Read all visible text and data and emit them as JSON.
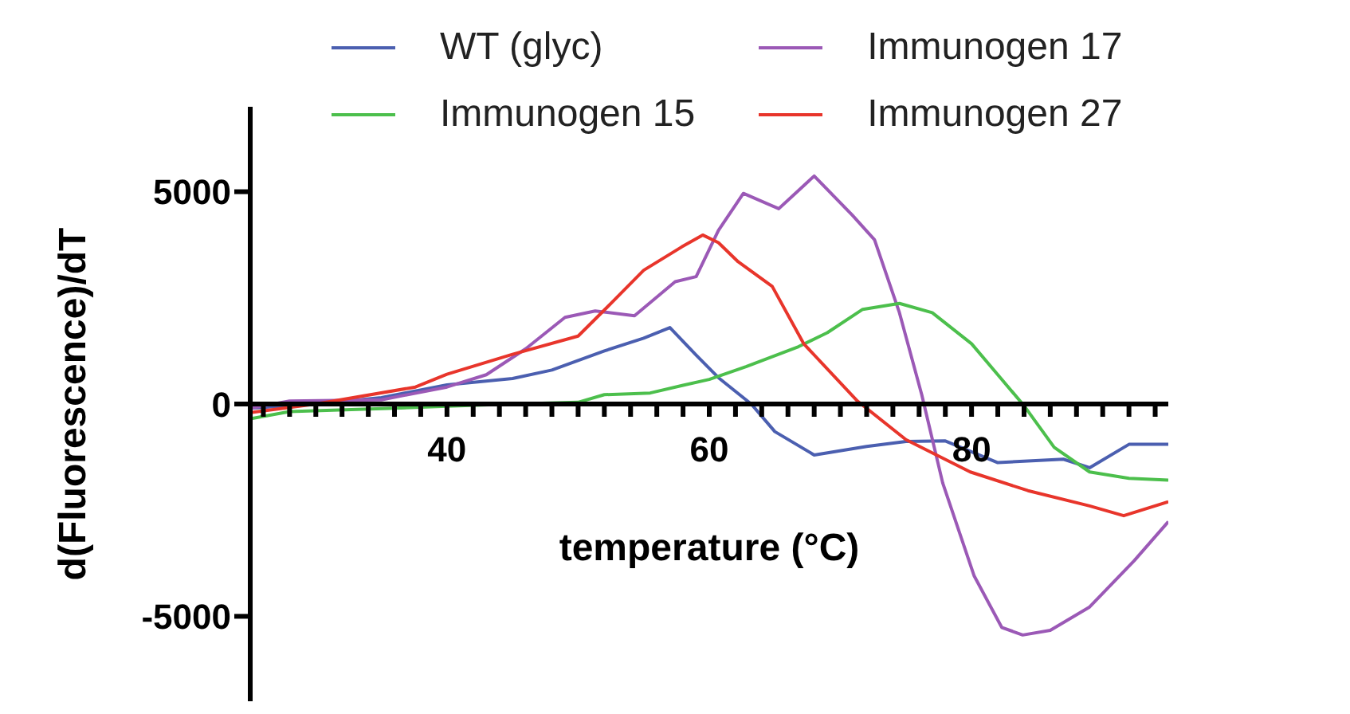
{
  "chart_data": {
    "type": "line",
    "xlabel": "temperature (°C)",
    "ylabel": "d(Fluorescence)/dT",
    "legend": "top",
    "xlim": [
      25,
      95
    ],
    "ylim": [
      -7000,
      7000
    ],
    "yticks": [
      -5000,
      0,
      5000
    ],
    "xticks": [
      {
        "value": 26,
        "label": null
      },
      {
        "value": 28,
        "label": null
      },
      {
        "value": 30,
        "label": null
      },
      {
        "value": 32,
        "label": null
      },
      {
        "value": 34,
        "label": null
      },
      {
        "value": 36,
        "label": null
      },
      {
        "value": 38,
        "label": null
      },
      40,
      {
        "value": 42,
        "label": null
      },
      {
        "value": 44,
        "label": null
      },
      {
        "value": 46,
        "label": null
      },
      {
        "value": 48,
        "label": null
      },
      {
        "value": 50,
        "label": null
      },
      {
        "value": 52,
        "label": null
      },
      {
        "value": 54,
        "label": null
      },
      {
        "value": 56,
        "label": null
      },
      {
        "value": 58,
        "label": null
      },
      60,
      {
        "value": 62,
        "label": null
      },
      {
        "value": 64,
        "label": null
      },
      {
        "value": 66,
        "label": null
      },
      {
        "value": 68,
        "label": null
      },
      {
        "value": 70,
        "label": null
      },
      {
        "value": 72,
        "label": null
      },
      {
        "value": 74,
        "label": null
      },
      {
        "value": 76,
        "label": null
      },
      {
        "value": 78,
        "label": null
      },
      80,
      {
        "value": 82,
        "label": null
      },
      {
        "value": 84,
        "label": null
      },
      {
        "value": 86,
        "label": null
      },
      {
        "value": 88,
        "label": null
      },
      {
        "value": 90,
        "label": null
      },
      {
        "value": 92,
        "label": null
      },
      {
        "value": 94,
        "label": null
      }
    ],
    "series": [
      {
        "name": "WT (glyc)",
        "color": "#4b5fb0",
        "x": [
          25,
          30,
          35,
          40,
          45,
          48,
          52,
          55,
          57,
          59,
          60.7,
          63.2,
          65,
          68,
          72,
          75,
          78,
          82,
          87,
          89,
          92,
          95
        ],
        "values": [
          -100,
          0,
          150,
          450,
          600,
          800,
          1250,
          1550,
          1800,
          1150,
          620,
          0,
          -650,
          -1200,
          -1000,
          -880,
          -870,
          -1380,
          -1300,
          -1500,
          -950,
          -950
        ]
      },
      {
        "name": "Immunogen 17",
        "color": "#9b59b6",
        "x": [
          25,
          28,
          35,
          40,
          43,
          46,
          49,
          51.3,
          54.3,
          57.4,
          59,
          60.7,
          62.6,
          65.3,
          68,
          70.9,
          72.6,
          74.5,
          76.2,
          77.8,
          80.2,
          82.3,
          83.9,
          86,
          89,
          92.4,
          95
        ],
        "values": [
          -100,
          70,
          100,
          400,
          690,
          1300,
          2040,
          2190,
          2080,
          2880,
          3000,
          4090,
          4960,
          4600,
          5370,
          4450,
          3870,
          2150,
          220,
          -1860,
          -4050,
          -5260,
          -5440,
          -5330,
          -4780,
          -3690,
          -2770
        ]
      },
      {
        "name": "Immunogen 15",
        "color": "#4cbf4c",
        "x": [
          25,
          28,
          36,
          40,
          45,
          50,
          52,
          55.5,
          58,
          60,
          62.8,
          66.8,
          69,
          71.7,
          74.5,
          77,
          80,
          82,
          84,
          86.3,
          89,
          92,
          95
        ],
        "values": [
          -350,
          -180,
          -100,
          -50,
          0,
          40,
          220,
          260,
          440,
          580,
          880,
          1350,
          1680,
          2230,
          2370,
          2150,
          1420,
          690,
          -40,
          -1020,
          -1600,
          -1750,
          -1790
        ]
      },
      {
        "name": "Immunogen 27",
        "color": "#e8352b",
        "x": [
          25,
          30,
          37.6,
          40,
          45,
          50,
          52.6,
          55,
          57.9,
          59.5,
          60.7,
          62.2,
          64.8,
          67.2,
          71.3,
          75,
          79.9,
          84.3,
          89,
          91.6,
          95
        ],
        "values": [
          -200,
          0,
          400,
          700,
          1170,
          1600,
          2400,
          3150,
          3700,
          3980,
          3800,
          3350,
          2770,
          1420,
          70,
          -840,
          -1600,
          -2040,
          -2400,
          -2630,
          -2300
        ]
      }
    ]
  }
}
